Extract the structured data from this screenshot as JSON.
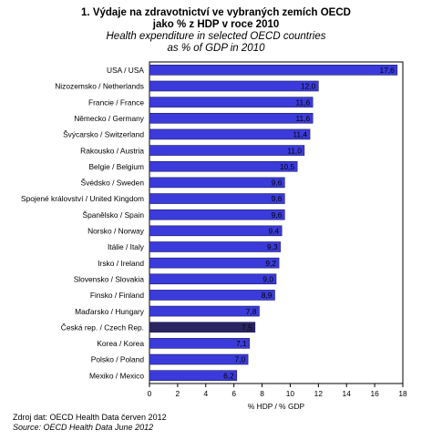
{
  "title_cs_line1": "1. Výdaje na zdravotnictví ve vybraných zemích OECD",
  "title_cs_line2": "jako % z HDP v roce 2010",
  "title_en_line1": "Health expenditure in selected OECD countries",
  "title_en_line2": "as % of GDP in 2010",
  "source_cs": "Zdroj dat: OECD Health Data červen 2012",
  "source_en": "Source: OECD Health Data June 2012",
  "colors": {
    "bar": "#3b3bdb",
    "bar_highlight": "#2a2560",
    "frame": "#000000"
  },
  "chart_data": {
    "type": "bar",
    "orientation": "horizontal",
    "categories": [
      "USA / USA",
      "Nizozemsko / Netherlands",
      "Francie / France",
      "Německo / Germany",
      "Švýcarsko / Switzerland",
      "Rakousko / Austria",
      "Belgie / Belgium",
      "Švédsko / Sweden",
      "Spojené království / United Kingdom",
      "Španělsko / Spain",
      "Norsko / Norway",
      "Itálie / Italy",
      "Irsko / Ireland",
      "Slovensko / Slovakia",
      "Finsko / Finland",
      "Maďarsko / Hungary",
      "Česká rep. / Czech Rep.",
      "Korea / Korea",
      "Polsko / Poland",
      "Mexiko / Mexico"
    ],
    "values": [
      17.6,
      12.0,
      11.6,
      11.6,
      11.4,
      11.0,
      10.5,
      9.6,
      9.6,
      9.6,
      9.4,
      9.3,
      9.2,
      9.0,
      8.9,
      7.8,
      7.5,
      7.1,
      7.0,
      6.2
    ],
    "value_labels": [
      "17,6",
      "12,0",
      "11,6",
      "11,6",
      "11,4",
      "11,0",
      "10,5",
      "9,6",
      "9,6",
      "9,6",
      "9,4",
      "9,3",
      "9,2",
      "9,0",
      "8,9",
      "7,8",
      "7,5",
      "7,1",
      "7,0",
      "6,2"
    ],
    "highlight_category": "Česká rep. / Czech Rep.",
    "xlabel": "% HDP / % GDP",
    "xlim": [
      0,
      18
    ],
    "xticks": [
      "0",
      "2",
      "4",
      "6",
      "8",
      "10",
      "12",
      "14",
      "16",
      "18"
    ],
    "grid": false,
    "legend": "none"
  }
}
